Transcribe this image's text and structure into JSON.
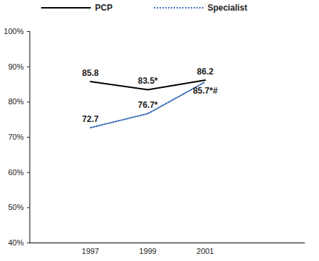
{
  "chart_data": {
    "type": "line",
    "categories": [
      "1997",
      "1999",
      "2001"
    ],
    "series": [
      {
        "name": "PCP",
        "color": "#000000",
        "line_style": "solid",
        "values": [
          85.8,
          83.5,
          86.2
        ],
        "value_labels": [
          "85.8",
          "83.5*",
          "86.2"
        ]
      },
      {
        "name": "Specialist",
        "color": "#3a6db5",
        "line_style": "dotted",
        "values": [
          72.7,
          76.7,
          85.7
        ],
        "value_labels": [
          "72.7",
          "76.7*",
          "85.7*#"
        ]
      }
    ],
    "ylim": [
      40,
      100
    ],
    "yticks": [
      {
        "value": 40,
        "label": "40%"
      },
      {
        "value": 50,
        "label": "50%"
      },
      {
        "value": 60,
        "label": "60%"
      },
      {
        "value": 70,
        "label": "70%"
      },
      {
        "value": 80,
        "label": "80%"
      },
      {
        "value": 90,
        "label": "90%"
      },
      {
        "value": 100,
        "label": "100%"
      }
    ],
    "grid": false,
    "legend": "top",
    "data_labels": true
  }
}
